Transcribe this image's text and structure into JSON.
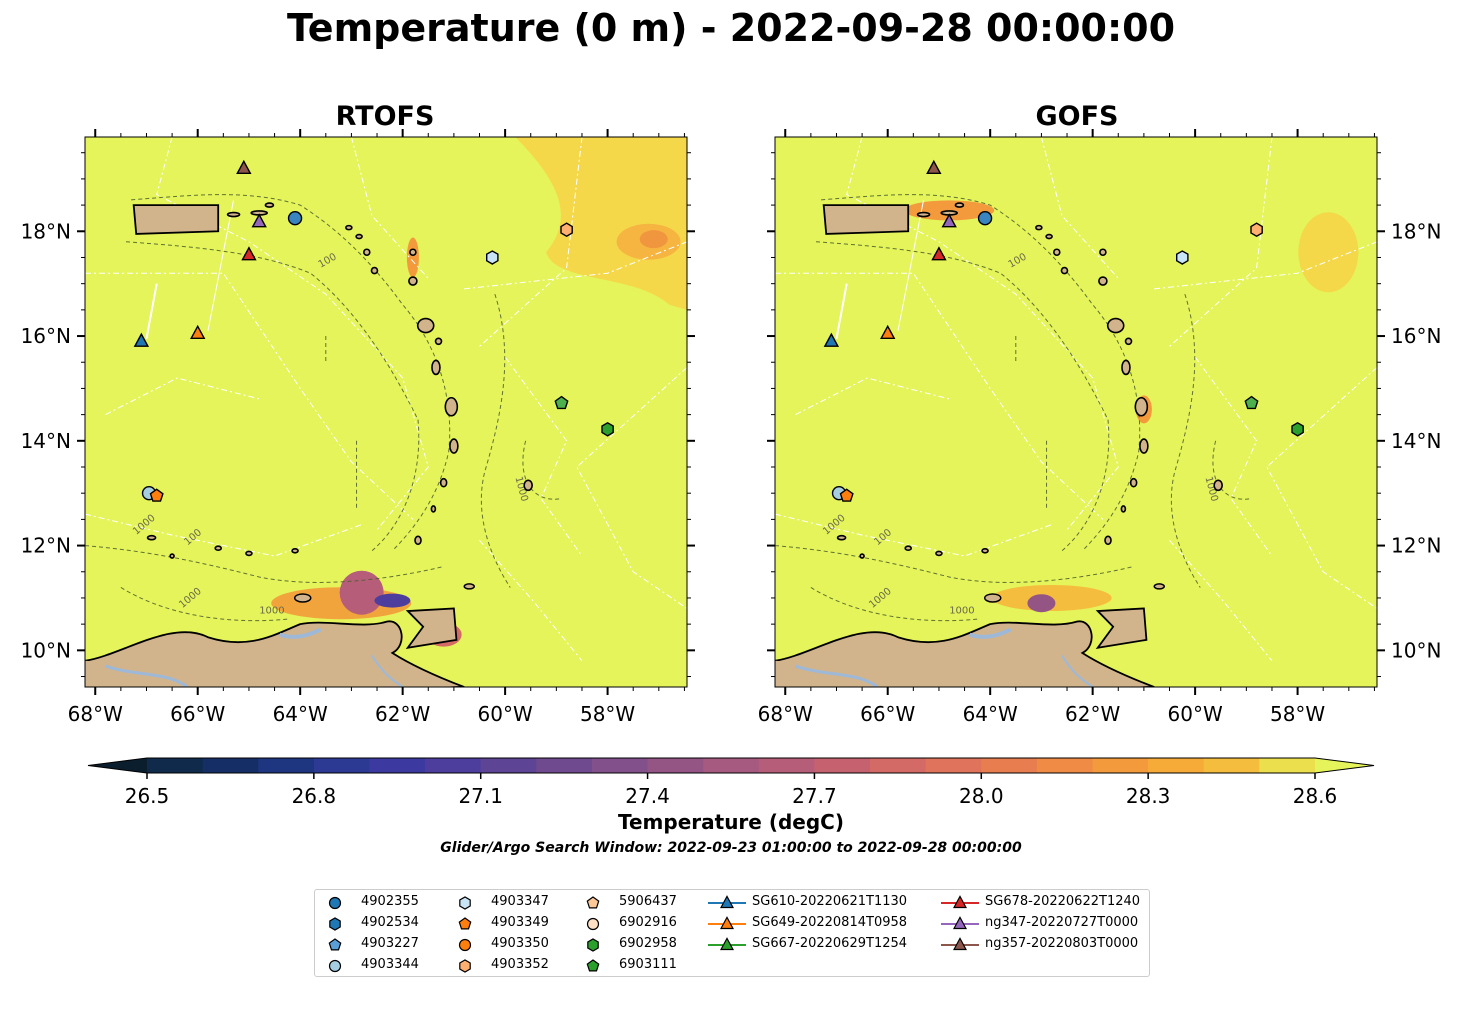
{
  "title": "Temperature (0 m) - 2022-09-28 00:00:00",
  "panels": [
    {
      "name": "rtofs",
      "title": "RTOFS"
    },
    {
      "name": "gofs",
      "title": "GOFS"
    }
  ],
  "axes": {
    "x_ticks": [
      "68°W",
      "66°W",
      "64°W",
      "62°W",
      "60°W",
      "58°W"
    ],
    "y_ticks": [
      "18°N",
      "16°N",
      "14°N",
      "12°N",
      "10°N"
    ],
    "contour_labels": [
      "100",
      "1000"
    ]
  },
  "colorbar": {
    "label": "Temperature (degC)",
    "ticks": [
      "26.5",
      "26.8",
      "27.1",
      "27.4",
      "27.7",
      "28.0",
      "28.3",
      "28.6"
    ],
    "range": [
      26.5,
      28.6
    ],
    "colors": [
      "#0b1e2e",
      "#0f2a4a",
      "#152f66",
      "#1e3580",
      "#2c3a94",
      "#3c3aa0",
      "#4d3e9e",
      "#5e4495",
      "#704a8e",
      "#82508a",
      "#945585",
      "#a65a80",
      "#b65e79",
      "#c66270",
      "#d46a66",
      "#df735b",
      "#e87e50",
      "#ef8b45",
      "#f39a3d",
      "#f6ab38",
      "#f5bd3d",
      "#f2cf45",
      "#ecdf4d",
      "#e4f45a"
    ]
  },
  "search_window": "Glider/Argo Search Window: 2022-09-23 01:00:00 to 2022-09-28 00:00:00",
  "legend": {
    "columns": [
      [
        {
          "label": "4902355",
          "shape": "circle",
          "color": "#1f77b4"
        },
        {
          "label": "4902534",
          "shape": "hexagon",
          "color": "#1f77b4"
        },
        {
          "label": "4903227",
          "shape": "pentagon",
          "color": "#5aa0d6"
        },
        {
          "label": "4903344",
          "shape": "circle",
          "color": "#a6cee3"
        }
      ],
      [
        {
          "label": "4903347",
          "shape": "hexagon",
          "color": "#c8e4f5"
        },
        {
          "label": "4903349",
          "shape": "pentagon",
          "color": "#ff7f0e"
        },
        {
          "label": "4903350",
          "shape": "circle",
          "color": "#ff7f0e"
        },
        {
          "label": "4903352",
          "shape": "hexagon",
          "color": "#ffb070"
        }
      ],
      [
        {
          "label": "5906437",
          "shape": "pentagon",
          "color": "#ffc896"
        },
        {
          "label": "6902916",
          "shape": "circle",
          "color": "#ffe0c4"
        },
        {
          "label": "6902958",
          "shape": "hexagon",
          "color": "#2ca02c"
        },
        {
          "label": "6903111",
          "shape": "pentagon",
          "color": "#2ca02c"
        }
      ],
      [
        {
          "label": "SG610-20220621T1130",
          "shape": "triangle",
          "color": "#1f77b4",
          "line": true
        },
        {
          "label": "SG649-20220814T0958",
          "shape": "triangle",
          "color": "#ff7f0e",
          "line": true
        },
        {
          "label": "SG667-20220629T1254",
          "shape": "triangle",
          "color": "#2ca02c",
          "line": true
        }
      ],
      [
        {
          "label": "SG678-20220622T1240",
          "shape": "triangle",
          "color": "#d62728",
          "line": true
        },
        {
          "label": "ng347-20220727T0000",
          "shape": "triangle",
          "color": "#9467bd",
          "line": true
        },
        {
          "label": "ng357-20220803T0000",
          "shape": "triangle",
          "color": "#8c564b",
          "line": true
        }
      ]
    ]
  },
  "map_colors": {
    "ocean": "#e4f45a",
    "land": "#d2b48c",
    "river": "#9eb8d8"
  },
  "markers": [
    {
      "id": "4902355",
      "shape": "circle",
      "color": "#3a85c0",
      "lon": -64.1,
      "lat": 18.25
    },
    {
      "id": "4903347",
      "shape": "hexagon",
      "color": "#c8e4f5",
      "lon": -60.25,
      "lat": 17.5
    },
    {
      "id": "4903352",
      "shape": "hexagon",
      "color": "#ffb070",
      "lon": -58.8,
      "lat": 18.03
    },
    {
      "id": "SG610-20220621T1130",
      "shape": "triangle",
      "color": "#1f77b4",
      "lon": -67.1,
      "lat": 15.9
    },
    {
      "id": "SG649-20220814T0958",
      "shape": "triangle",
      "color": "#ff7f0e",
      "lon": -66.0,
      "lat": 16.05
    },
    {
      "id": "ng357-20220803T0000",
      "shape": "triangle",
      "color": "#8c564b",
      "lon": -65.1,
      "lat": 19.2
    },
    {
      "id": "ng347-20220727T0000",
      "shape": "triangle",
      "color": "#9467bd",
      "lon": -64.8,
      "lat": 18.18
    },
    {
      "id": "SG678-20220622T1240",
      "shape": "triangle",
      "color": "#d62728",
      "lon": -65.0,
      "lat": 17.55
    },
    {
      "id": "6903111",
      "shape": "pentagon",
      "color": "#4cb04c",
      "lon": -58.9,
      "lat": 14.72
    },
    {
      "id": "6902958",
      "shape": "hexagon",
      "color": "#2ca02c",
      "lon": -58.0,
      "lat": 14.22
    },
    {
      "id": "4903344",
      "shape": "circle",
      "color": "#a6cee3",
      "lon": -66.95,
      "lat": 13.0
    },
    {
      "id": "4903349",
      "shape": "pentagon",
      "color": "#ff7f0e",
      "lon": -66.8,
      "lat": 12.95
    }
  ]
}
